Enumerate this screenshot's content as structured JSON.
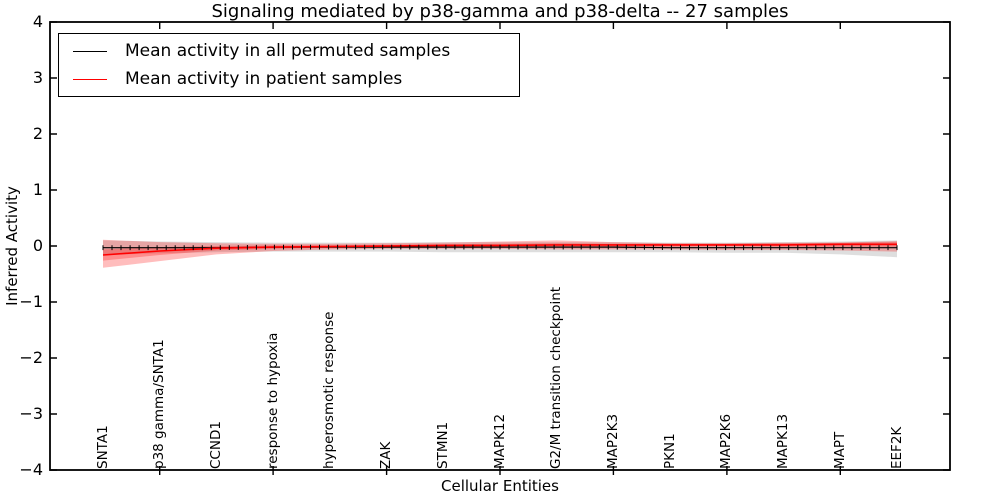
{
  "figure": {
    "title": "Signaling mediated by p38-gamma and p38-delta -- 27 samples",
    "xlabel": "Cellular Entities",
    "ylabel": "Inferred Activity"
  },
  "legend": {
    "items": [
      {
        "label": "Mean activity in all permuted samples",
        "color": "#000000"
      },
      {
        "label": "Mean activity in patient samples",
        "color": "#ff0000"
      }
    ]
  },
  "axes": {
    "y_tick_labels": [
      "4",
      "3",
      "2",
      "1",
      "0",
      "−1",
      "−2",
      "−3",
      "−4"
    ],
    "y_tick_values": [
      4,
      3,
      2,
      1,
      0,
      -1,
      -2,
      -3,
      -4
    ]
  },
  "chart_data": {
    "type": "line",
    "title": "Signaling mediated by p38-gamma and p38-delta -- 27 samples",
    "xlabel": "Cellular Entities",
    "ylabel": "Inferred Activity",
    "ylim": [
      -4,
      4
    ],
    "grid": false,
    "legend_position": "upper left",
    "categories": [
      "SNTA1",
      "p38 gamma/SNTA1",
      "CCND1",
      "response to hypoxia",
      "hyperosmotic response",
      "ZAK",
      "STMN1",
      "MAPK12",
      "G2/M transition checkpoint",
      "MAP2K3",
      "PKN1",
      "MAP2K6",
      "MAPK13",
      "MAPT",
      "EEF2K"
    ],
    "x_tick_mark_indices": [
      1,
      3,
      5,
      7,
      9,
      11,
      13
    ],
    "series": [
      {
        "name": "permuted-mean",
        "label": "Mean activity in all permuted samples",
        "color": "#000000",
        "width": 1.2,
        "values": [
          -0.03,
          -0.03,
          -0.03,
          -0.02,
          -0.02,
          -0.02,
          -0.02,
          -0.02,
          -0.02,
          -0.02,
          -0.03,
          -0.03,
          -0.03,
          -0.03,
          -0.03
        ]
      },
      {
        "name": "patient-mean",
        "label": "Mean activity in patient samples",
        "color": "#ff0000",
        "width": 1.6,
        "values": [
          -0.16,
          -0.09,
          -0.04,
          -0.02,
          -0.01,
          0.0,
          0.01,
          0.01,
          0.02,
          0.02,
          0.02,
          0.02,
          0.02,
          0.03,
          0.03
        ]
      }
    ],
    "bands": [
      {
        "name": "permuted-std",
        "color": "rgba(0,0,0,0.13)",
        "upper": [
          0.1,
          0.08,
          0.07,
          0.06,
          0.06,
          0.06,
          0.07,
          0.07,
          0.07,
          0.07,
          0.06,
          0.06,
          0.07,
          0.08,
          0.1
        ],
        "lower": [
          -0.16,
          -0.13,
          -0.11,
          -0.1,
          -0.1,
          -0.1,
          -0.11,
          -0.11,
          -0.11,
          -0.11,
          -0.11,
          -0.12,
          -0.12,
          -0.15,
          -0.2
        ]
      },
      {
        "name": "patient-std",
        "color": "rgba(255,0,0,0.26)",
        "upper": [
          0.11,
          0.07,
          0.05,
          0.04,
          0.04,
          0.05,
          0.06,
          0.08,
          0.1,
          0.07,
          0.05,
          0.05,
          0.06,
          0.06,
          0.09
        ],
        "lower": [
          -0.39,
          -0.27,
          -0.15,
          -0.09,
          -0.06,
          -0.05,
          -0.05,
          -0.05,
          -0.06,
          -0.06,
          -0.06,
          -0.07,
          -0.07,
          -0.08,
          -0.1
        ]
      },
      {
        "name": "patient-stderr",
        "color": "rgba(255,0,0,0.26)",
        "upper": [
          -0.06,
          -0.02,
          0.0,
          0.01,
          0.01,
          0.02,
          0.03,
          0.04,
          0.05,
          0.04,
          0.04,
          0.04,
          0.05,
          0.06,
          0.07
        ],
        "lower": [
          -0.26,
          -0.16,
          -0.08,
          -0.05,
          -0.03,
          -0.02,
          -0.02,
          -0.02,
          -0.02,
          -0.01,
          -0.01,
          0.0,
          -0.01,
          -0.01,
          -0.01
        ]
      }
    ],
    "sample_markers": {
      "count": 89,
      "color": "#000000"
    }
  }
}
